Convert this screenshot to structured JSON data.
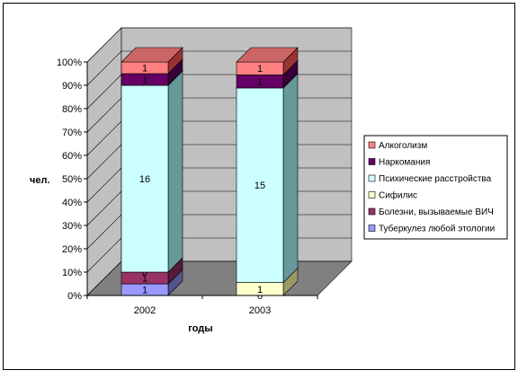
{
  "chart_data": {
    "type": "bar",
    "stacked": "percent",
    "three_d": true,
    "title": "",
    "xlabel": "годы",
    "ylabel": "чел.",
    "ylim": [
      0,
      100
    ],
    "y_ticks": [
      "0%",
      "10%",
      "20%",
      "30%",
      "40%",
      "50%",
      "60%",
      "70%",
      "80%",
      "90%",
      "100%"
    ],
    "categories": [
      "2002",
      "2003"
    ],
    "series": [
      {
        "name": "Туберкулез любой этологии",
        "color": "#9999ff",
        "values": [
          1,
          0
        ]
      },
      {
        "name": "Болезни, вызываемые ВИЧ",
        "color": "#993366",
        "values": [
          1,
          0
        ]
      },
      {
        "name": "Сифилис",
        "color": "#ffffcc",
        "values": [
          0,
          1
        ]
      },
      {
        "name": "Психические расстройства",
        "color": "#ccffff",
        "values": [
          16,
          15
        ]
      },
      {
        "name": "Наркомания",
        "color": "#660066",
        "values": [
          1,
          1
        ]
      },
      {
        "name": "Алкоголизм",
        "color": "#ff8080",
        "values": [
          1,
          1
        ]
      }
    ],
    "legend_position": "right",
    "grid": true,
    "wall_color": "#c0c0c0",
    "floor_color": "#808080"
  }
}
